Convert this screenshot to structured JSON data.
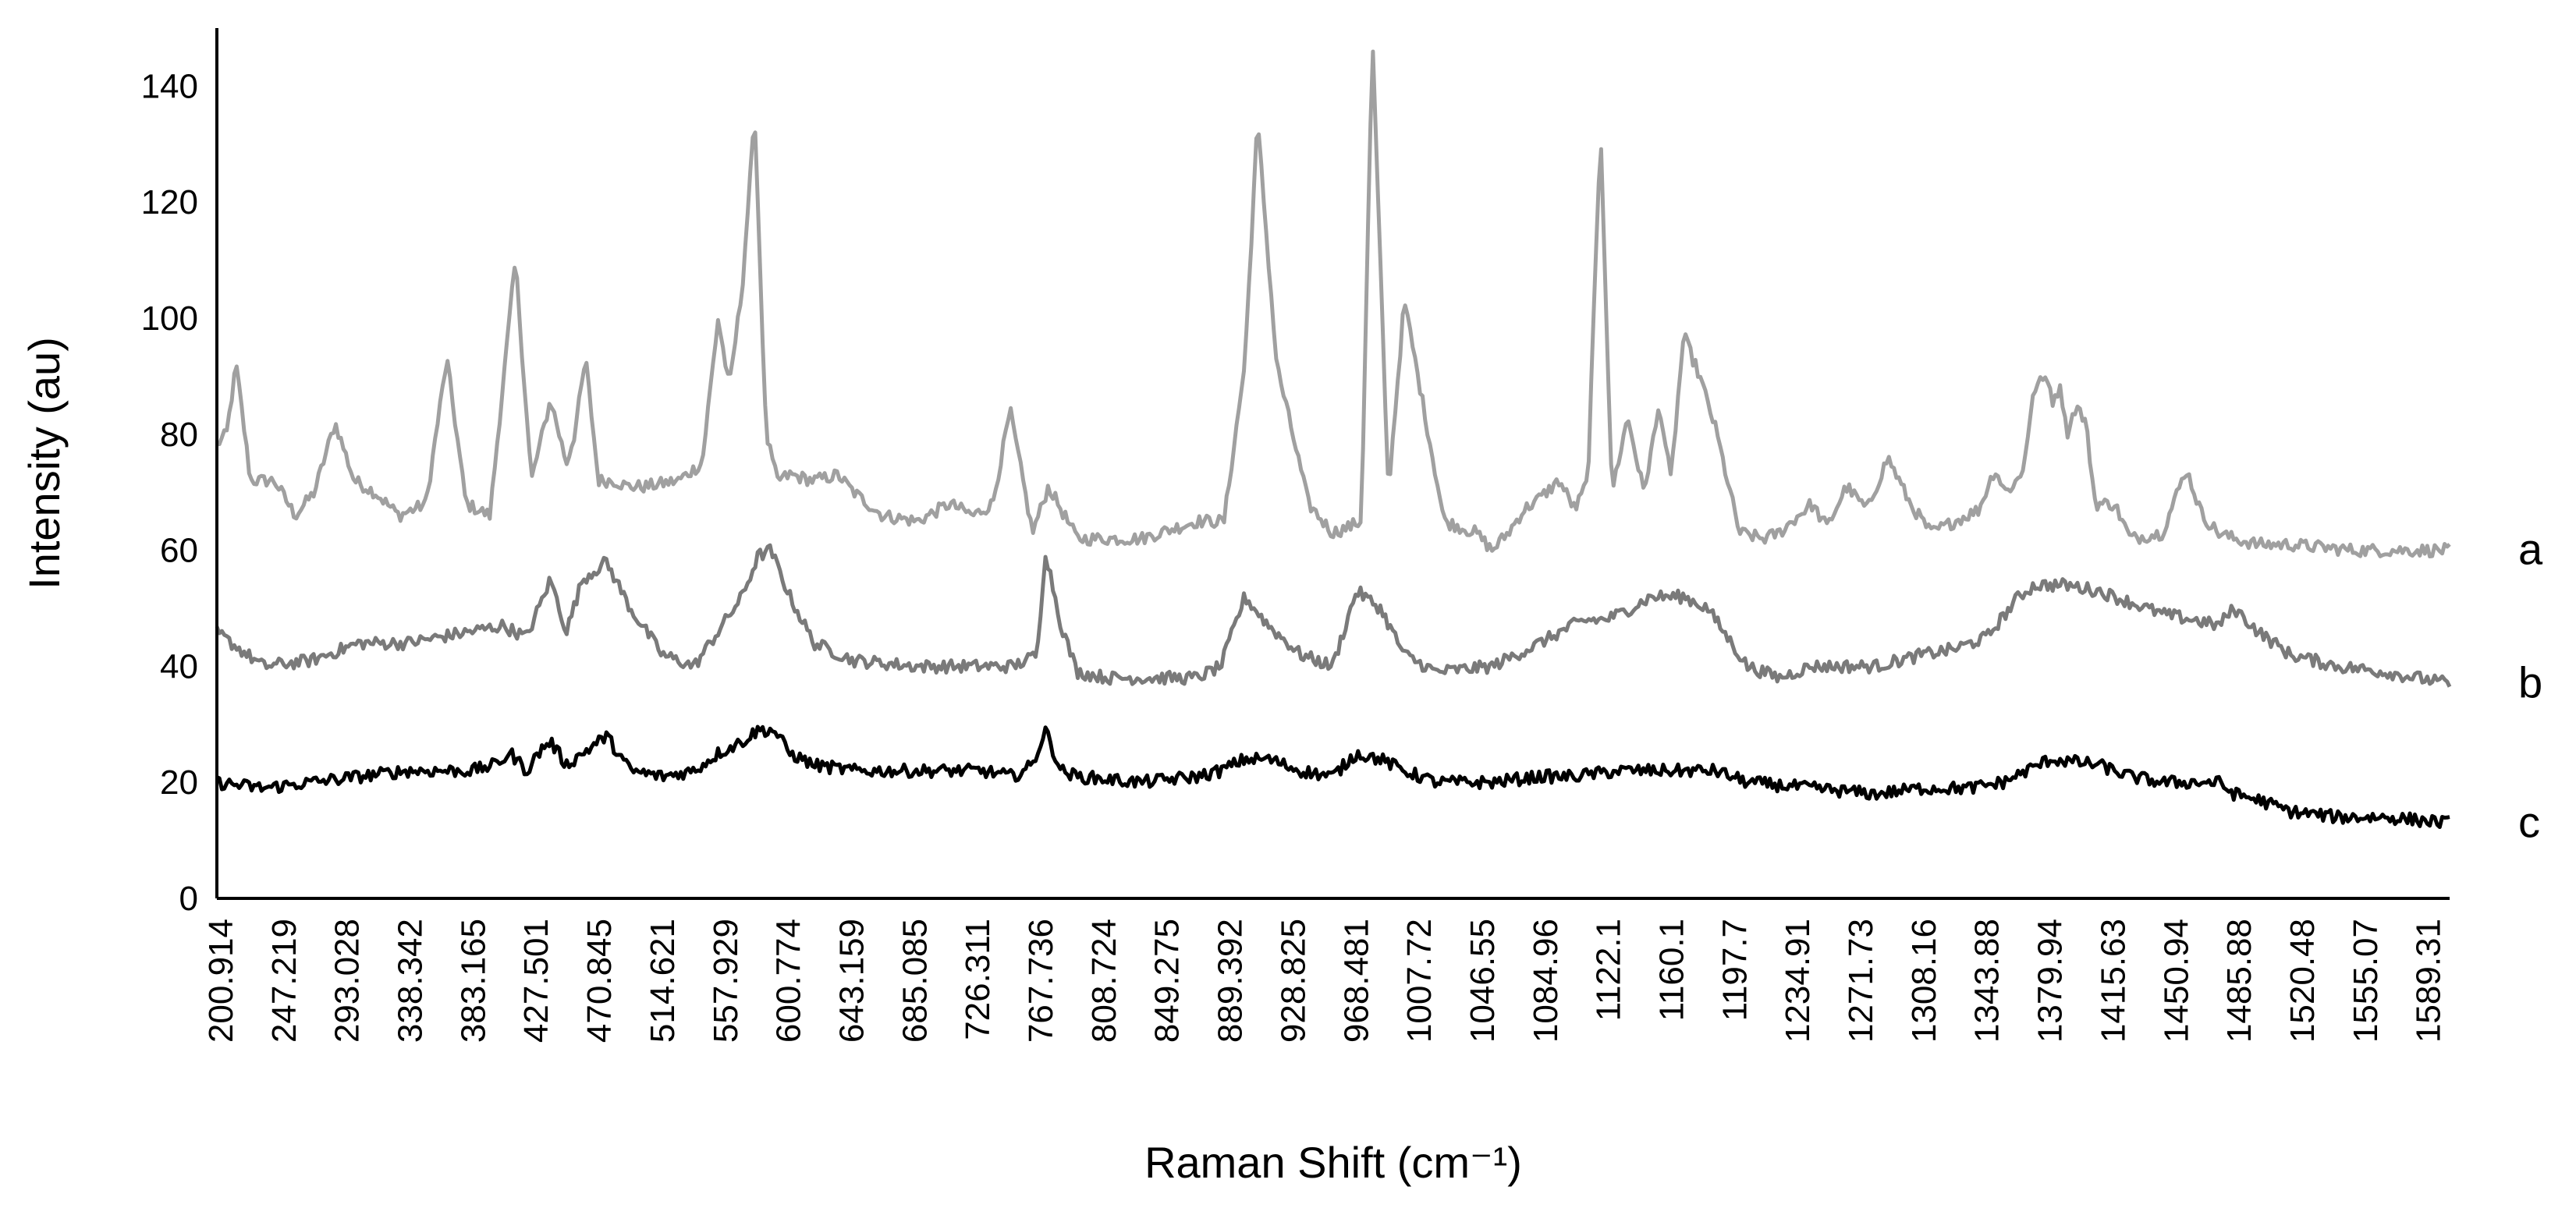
{
  "chart_data": {
    "type": "line",
    "title": "",
    "xlabel": "Raman Shift (cm⁻¹)",
    "ylabel": "Intensity (au)",
    "ylim": [
      0,
      150
    ],
    "xlim": [
      200.914,
      1600
    ],
    "yticks": [
      0,
      20,
      40,
      60,
      80,
      100,
      120,
      140
    ],
    "xtick_labels": [
      "200.914",
      "247.219",
      "293.028",
      "338.342",
      "383.165",
      "427.501",
      "470.845",
      "514.621",
      "557.929",
      "600.774",
      "643.159",
      "685.085",
      "726.311",
      "767.736",
      "808.724",
      "849.275",
      "889.392",
      "928.825",
      "968.481",
      "1007.72",
      "1046.55",
      "1084.96",
      "1122.1",
      "1160.1",
      "1197.7",
      "1234.91",
      "1271.73",
      "1308.16",
      "1343.88",
      "1379.94",
      "1415.63",
      "1450.94",
      "1485.88",
      "1520.48",
      "1555.07",
      "1589.31"
    ],
    "grid": false,
    "legend": "none",
    "series": [
      {
        "name": "a",
        "color": "#a0a0a0",
        "x": [
          200,
          207,
          213,
          222,
          237,
          250,
          262,
          275,
          287,
          300,
          315,
          332,
          345,
          357,
          372,
          388,
          398,
          410,
          420,
          425,
          432,
          440,
          450,
          458,
          470,
          490,
          505,
          515,
          522,
          530,
          538,
          545,
          552,
          560,
          575,
          590,
          600,
          618,
          640,
          660,
          675,
          687,
          698,
          712,
          722,
          740,
          780,
          815,
          832,
          845,
          853,
          865,
          885,
          900,
          910,
          918,
          925,
          935,
          945,
          970,
          990,
          1000,
          1010,
          1020,
          1030,
          1042,
          1052,
          1060,
          1068,
          1075,
          1085,
          1095,
          1105,
          1112,
          1120,
          1130,
          1140,
          1155,
          1170,
          1180,
          1200,
          1210,
          1222,
          1235,
          1248,
          1262,
          1275,
          1290,
          1305,
          1315,
          1322,
          1332,
          1340,
          1348,
          1352,
          1356,
          1360,
          1366,
          1372,
          1378,
          1390,
          1400,
          1420,
          1435,
          1445,
          1455,
          1465,
          1480,
          1500,
          1540,
          1580,
          1600
        ],
        "y": [
          78,
          80,
          92,
          72,
          72,
          66,
          70,
          82,
          72,
          70,
          66,
          68,
          93,
          68,
          66,
          110,
          72,
          86,
          75,
          80,
          93,
          72,
          72,
          71,
          71,
          72,
          75,
          100,
          88,
          105,
          135,
          80,
          72,
          73,
          72,
          73,
          70,
          66,
          65,
          68,
          66,
          68,
          84,
          63,
          71,
          62,
          62,
          65,
          65,
          92,
          134,
          92,
          68,
          63,
          64,
          65,
          148,
          70,
          103,
          65,
          63,
          60,
          63,
          67,
          69,
          72,
          67,
          72,
          133,
          70,
          83,
          70,
          85,
          72,
          97,
          90,
          81,
          63,
          62,
          63,
          68,
          64,
          71,
          67,
          76,
          68,
          63,
          65,
          67,
          74,
          70,
          73,
          88,
          90,
          85,
          89,
          80,
          85,
          82,
          68,
          68,
          62,
          63,
          74,
          66,
          63,
          62,
          61,
          61,
          60,
          60,
          60
        ]
      },
      {
        "name": "b",
        "color": "#7a7a7a",
        "x": [
          200,
          230,
          260,
          290,
          320,
          360,
          380,
          395,
          410,
          420,
          430,
          445,
          460,
          480,
          500,
          515,
          530,
          540,
          548,
          560,
          575,
          600,
          640,
          680,
          700,
          715,
          720,
          730,
          740,
          760,
          790,
          815,
          830,
          845,
          860,
          880,
          900,
          915,
          930,
          945,
          965,
          1000,
          1030,
          1050,
          1060,
          1070,
          1080,
          1100,
          1120,
          1135,
          1160,
          1180,
          1200,
          1240,
          1270,
          1290,
          1310,
          1330,
          1340,
          1360,
          1380,
          1400,
          1420,
          1440,
          1455,
          1465,
          1480,
          1500,
          1530,
          1560,
          1600
        ],
        "y": [
          46,
          40,
          41,
          44,
          44,
          46,
          47,
          45,
          55,
          46,
          55,
          58,
          50,
          42,
          40,
          46,
          52,
          59,
          60,
          52,
          44,
          41,
          40,
          40,
          40,
          42,
          60,
          47,
          39,
          38,
          38,
          38,
          40,
          52,
          47,
          42,
          40,
          53,
          50,
          42,
          39,
          40,
          44,
          47,
          48,
          48,
          49,
          52,
          52,
          50,
          40,
          38,
          40,
          40,
          42,
          43,
          45,
          52,
          54,
          54,
          53,
          51,
          49,
          48,
          47,
          50,
          46,
          42,
          40,
          39,
          37
        ]
      },
      {
        "name": "c",
        "color": "#000000",
        "x": [
          200,
          230,
          260,
          290,
          320,
          360,
          375,
          385,
          395,
          405,
          410,
          420,
          430,
          445,
          460,
          480,
          500,
          515,
          530,
          540,
          550,
          560,
          575,
          600,
          640,
          680,
          700,
          712,
          720,
          730,
          740,
          780,
          815,
          830,
          845,
          860,
          880,
          900,
          915,
          930,
          945,
          965,
          1000,
          1030,
          1050,
          1080,
          1110,
          1125,
          1140,
          1160,
          1200,
          1240,
          1270,
          1300,
          1320,
          1335,
          1350,
          1380,
          1400,
          1420,
          1440,
          1455,
          1465,
          1480,
          1500,
          1530,
          1560,
          1600
        ],
        "y": [
          20,
          19,
          20,
          21,
          22,
          22,
          23,
          25,
          22,
          26,
          27,
          23,
          25,
          28,
          22,
          21,
          22,
          25,
          27,
          29,
          29,
          25,
          23,
          22,
          22,
          22,
          21,
          23,
          29,
          22,
          21,
          20,
          21,
          22,
          24,
          24,
          22,
          21,
          25,
          24,
          22,
          20,
          20,
          21,
          21,
          22,
          22,
          22,
          22,
          20,
          19,
          18,
          19,
          19,
          20,
          22,
          24,
          23,
          21,
          20,
          20,
          20,
          18,
          17,
          15,
          14,
          14,
          13
        ]
      }
    ],
    "series_labels": [
      "a",
      "b",
      "c"
    ]
  }
}
